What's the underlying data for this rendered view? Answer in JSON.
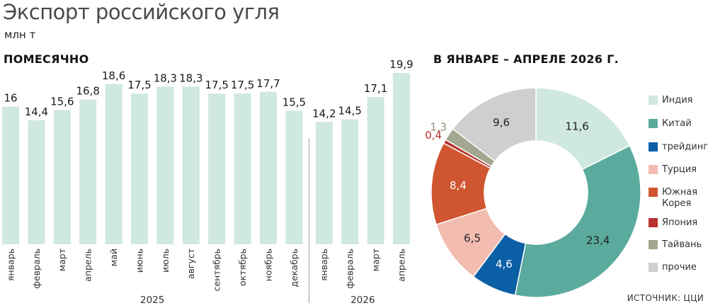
{
  "header": {
    "title": "Экспорт российского угля",
    "unit": "млн т"
  },
  "monthly": {
    "subtitle": "ПОМЕСЯЧНО"
  },
  "breakdown": {
    "subtitle": "В ЯНВАРЕ – АПРЕЛЕ 2026 Г."
  },
  "source": "ИСТОЧНИК: ЦЦИ",
  "chart_data": [
    {
      "type": "bar",
      "categories": [
        "январь",
        "февраль",
        "март",
        "апрель",
        "май",
        "июнь",
        "июль",
        "август",
        "сентябрь",
        "октябрь",
        "ноябрь",
        "декабрь",
        "январь",
        "февраль",
        "март",
        "апрель"
      ],
      "values": [
        16,
        14.4,
        15.6,
        16.8,
        18.6,
        17.5,
        18.3,
        18.3,
        17.5,
        17.5,
        17.7,
        15.5,
        14.2,
        14.5,
        17.1,
        19.9
      ],
      "value_labels": [
        "16",
        "14,4",
        "15,6",
        "16,8",
        "18,6",
        "17,5",
        "18,3",
        "18,3",
        "17,5",
        "17,5",
        "17,7",
        "15,5",
        "14,2",
        "14,5",
        "17,1",
        "19,9"
      ],
      "groups": [
        {
          "label": "2025",
          "from": 0,
          "to": 11
        },
        {
          "label": "2026",
          "from": 12,
          "to": 15
        }
      ],
      "ylim": [
        0,
        21
      ],
      "color": "#cfe8e0"
    },
    {
      "type": "pie",
      "donut": true,
      "labels": [
        "Индия",
        "Китай",
        "трейдинг",
        "Турция",
        "Южная Корея",
        "Япония",
        "Тайвань",
        "прочие"
      ],
      "legend_lines": [
        [
          "Индия"
        ],
        [
          "Китай"
        ],
        [
          "трейдинг"
        ],
        [
          "Турция"
        ],
        [
          "Южная",
          "Корея"
        ],
        [
          "Япония"
        ],
        [
          "Тайвань"
        ],
        [
          "прочие"
        ]
      ],
      "values": [
        11.6,
        23.4,
        4.6,
        6.5,
        8.4,
        0.4,
        1.3,
        9.6
      ],
      "value_labels": [
        "11,6",
        "23,4",
        "4,6",
        "6,5",
        "8,4",
        "0,4",
        "1,3",
        "9,6"
      ],
      "colors": [
        "#cfe8e0",
        "#5aab9d",
        "#0b5fa5",
        "#f2bcb0",
        "#cf5630",
        "#b8322f",
        "#a1a88f",
        "#cfcfcf"
      ],
      "label_colors": [
        "#222222",
        "#222222",
        "#ffffff",
        "#222222",
        "#ffffff",
        "#b8322f",
        "#8a8f7a",
        "#222222"
      ],
      "legend": "right"
    }
  ]
}
